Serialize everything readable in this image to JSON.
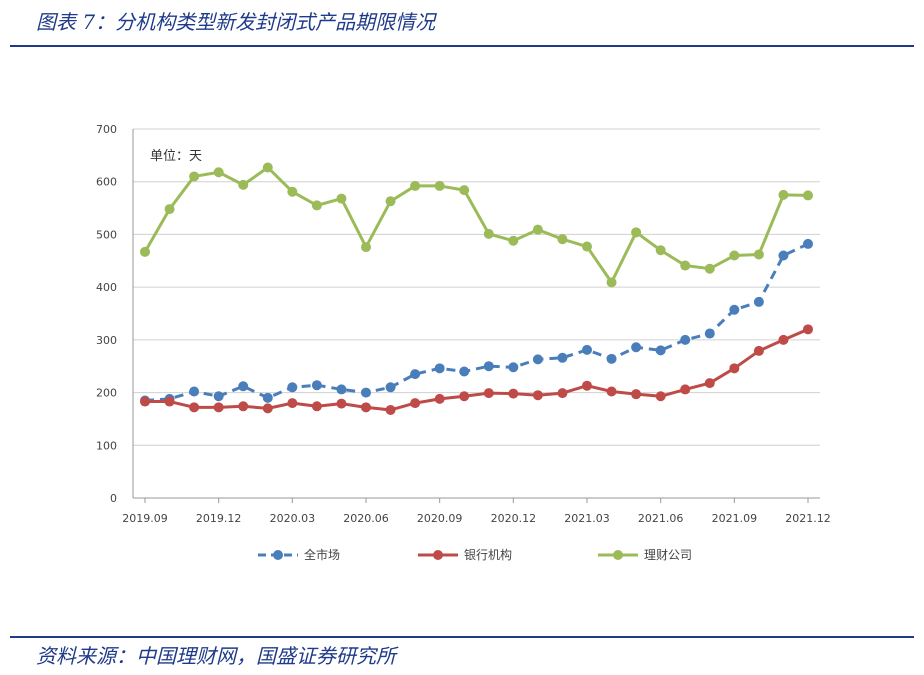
{
  "figure": {
    "title": "图表 7：分机构类型新发封闭式产品期限情况",
    "source": "资料来源：中国理财网，国盛证券研究所"
  },
  "chart_data": {
    "type": "line",
    "title": "",
    "unit_label": "单位：天",
    "xlabel": "",
    "ylabel": "",
    "ylim": [
      0,
      700
    ],
    "yticks": [
      0,
      100,
      200,
      300,
      400,
      500,
      600,
      700
    ],
    "x_tick_labels": [
      "2019.09",
      "2019.12",
      "2020.03",
      "2020.06",
      "2020.09",
      "2020.12",
      "2021.03",
      "2021.06",
      "2021.09",
      "2021.12"
    ],
    "x_tick_indices": [
      0,
      3,
      6,
      9,
      12,
      15,
      18,
      21,
      24,
      27
    ],
    "x": [
      "2019.09",
      "2019.10",
      "2019.11",
      "2019.12",
      "2020.01",
      "2020.02",
      "2020.03",
      "2020.04",
      "2020.05",
      "2020.06",
      "2020.07",
      "2020.08",
      "2020.09",
      "2020.10",
      "2020.11",
      "2020.12",
      "2021.01",
      "2021.02",
      "2021.03",
      "2021.04",
      "2021.05",
      "2021.06",
      "2021.07",
      "2021.08",
      "2021.09",
      "2021.10",
      "2021.11",
      "2021.12"
    ],
    "grid": true,
    "legend_position": "bottom",
    "series": [
      {
        "name": "全市场",
        "color": "#4a7ebb",
        "dashed": true,
        "values": [
          185,
          188,
          202,
          193,
          212,
          190,
          210,
          214,
          206,
          200,
          210,
          235,
          246,
          240,
          250,
          248,
          263,
          266,
          281,
          264,
          286,
          280,
          300,
          312,
          357,
          372,
          460,
          482
        ]
      },
      {
        "name": "银行机构",
        "color": "#be4b48",
        "dashed": false,
        "values": [
          183,
          183,
          172,
          172,
          174,
          170,
          180,
          174,
          179,
          172,
          167,
          180,
          188,
          193,
          199,
          198,
          195,
          199,
          213,
          202,
          197,
          193,
          206,
          218,
          246,
          279,
          300,
          320
        ]
      },
      {
        "name": "理财公司",
        "color": "#9bbb59",
        "dashed": false,
        "values": [
          467,
          548,
          610,
          618,
          594,
          627,
          581,
          555,
          568,
          476,
          563,
          592,
          592,
          584,
          501,
          488,
          509,
          491,
          477,
          409,
          504,
          470,
          441,
          435,
          460,
          462,
          575,
          574
        ]
      }
    ]
  }
}
